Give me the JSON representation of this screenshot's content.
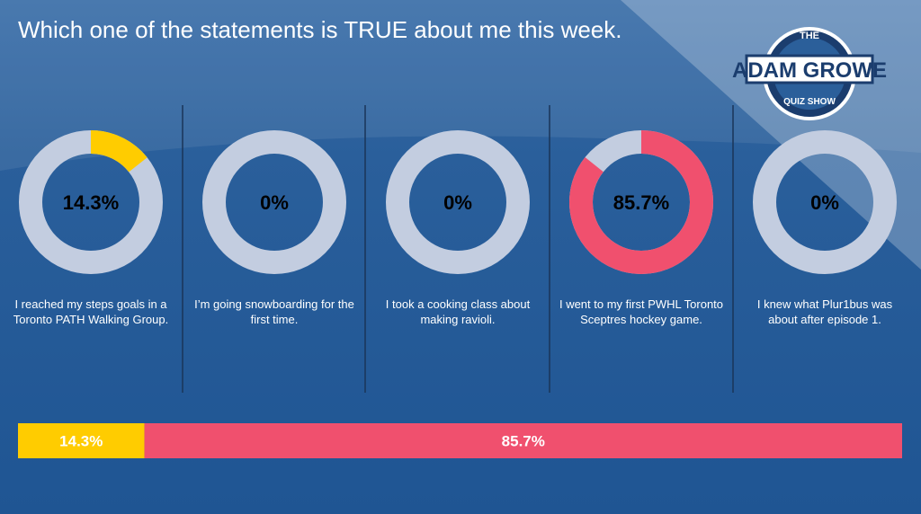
{
  "title": "Which one of the statements is TRUE about me this week.",
  "logo": {
    "top": "THE",
    "main": "ADAM GROWE",
    "bottom": "QUIZ SHOW"
  },
  "chart_data": {
    "type": "donut",
    "categories": [
      "I reached my steps goals in a Toronto PATH Walking Group.",
      "I’m going snowboarding for the first time.",
      "I took a cooking class about making ravioli.",
      "I went to my first PWHL Toronto Sceptres hockey game.",
      "I knew what Plur1bus was about after episode 1."
    ],
    "values": [
      14.3,
      0,
      0,
      85.7,
      0
    ],
    "value_labels": [
      "14.3%",
      "0%",
      "0%",
      "85.7%",
      "0%"
    ],
    "colors": [
      "#ffcc00",
      null,
      null,
      "#f0506e",
      null
    ],
    "track_color": "#c3cde0"
  }
}
